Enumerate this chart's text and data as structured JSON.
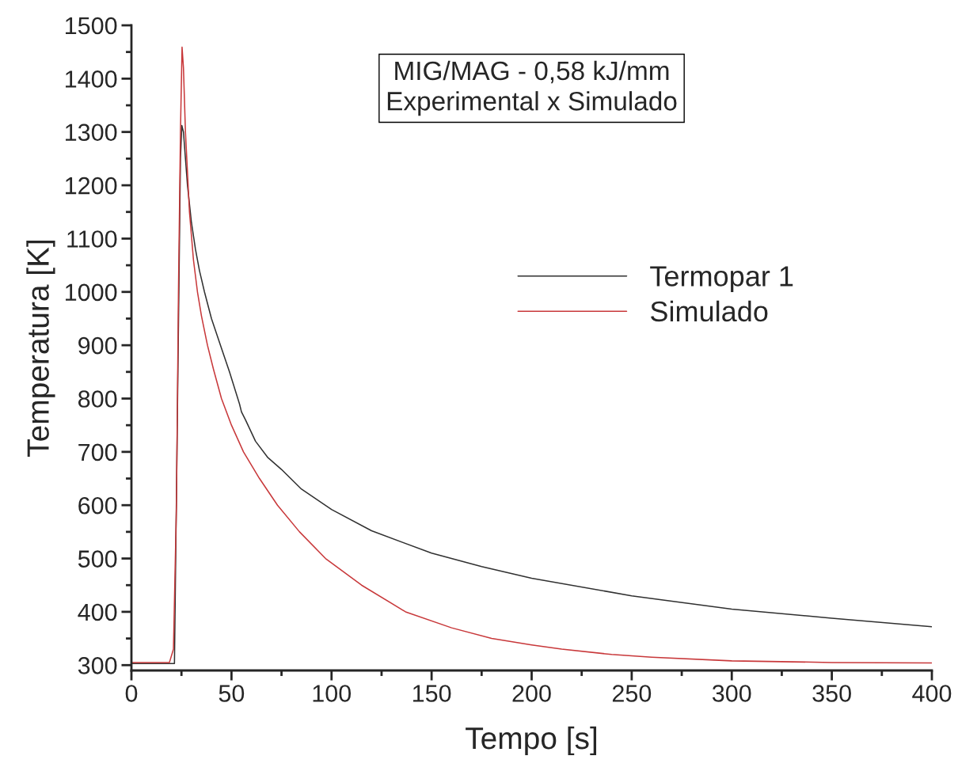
{
  "chart_data": {
    "type": "line",
    "title": "MIG/MAG - 0,58 kJ/mm\nExperimental x Simulado",
    "xlabel": "Tempo [s]",
    "ylabel": "Temperatura [K]",
    "series": [
      {
        "name": "Termopar 1",
        "color": "#303030",
        "x": [
          0,
          10,
          21.5,
          24.5,
          25.2,
          26,
          27,
          28,
          30,
          32,
          34,
          36.5,
          40,
          44.5,
          49,
          54,
          55,
          57,
          62,
          68,
          75,
          85,
          100,
          120,
          150,
          175,
          200,
          250,
          300,
          350,
          400
        ],
        "values": [
          303,
          303,
          303,
          1250,
          1312,
          1300,
          1250,
          1200,
          1130,
          1080,
          1040,
          1000,
          950,
          900,
          850,
          790,
          775,
          760,
          720,
          690,
          667,
          630,
          592,
          552,
          510,
          485,
          463,
          430,
          405,
          388,
          372
        ]
      },
      {
        "name": "Simulado",
        "color": "#c8383a",
        "x": [
          0,
          10,
          19,
          21,
          22.5,
          23.5,
          24.5,
          25.3,
          26,
          27,
          29,
          31,
          33,
          35,
          38,
          41,
          45,
          50,
          56,
          64,
          73,
          84,
          97,
          115,
          137,
          160,
          180,
          200,
          215,
          240,
          260,
          300,
          350,
          400
        ],
        "values": [
          305,
          305,
          305,
          330,
          600,
          1000,
          1300,
          1459,
          1420,
          1300,
          1150,
          1060,
          1000,
          955,
          900,
          855,
          800,
          750,
          700,
          650,
          600,
          550,
          500,
          450,
          400,
          370,
          350,
          338,
          330,
          320,
          315,
          308,
          305,
          304
        ]
      }
    ],
    "xlim": [
      0,
      400
    ],
    "xticks": [
      0,
      50,
      100,
      150,
      200,
      250,
      300,
      350,
      400
    ],
    "ylim": [
      290,
      1500
    ],
    "yticks": [
      300,
      400,
      500,
      600,
      700,
      800,
      900,
      1000,
      1100,
      1200,
      1300,
      1400,
      1500
    ],
    "grid": false,
    "legend": "right",
    "marker": "none",
    "line_style": "solid"
  }
}
